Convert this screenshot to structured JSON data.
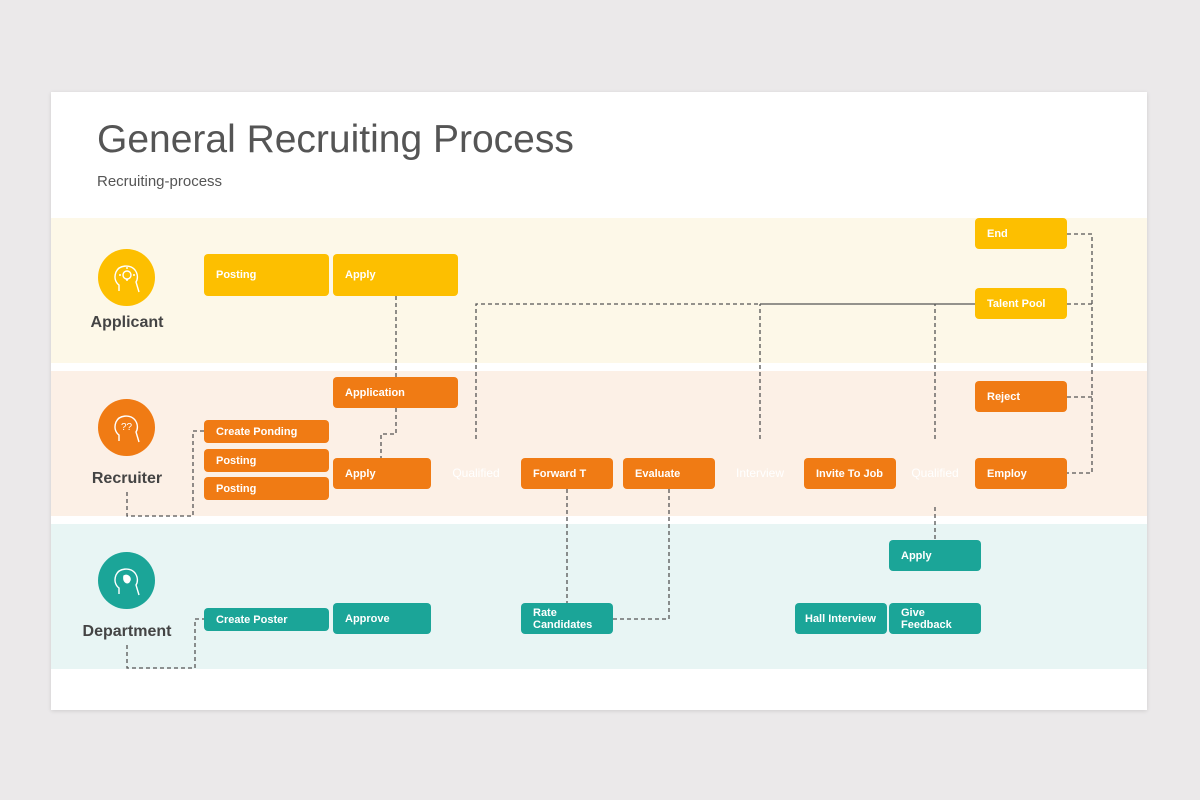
{
  "title": "General Recruiting Process",
  "subtitle": "Recruiting-process",
  "colors": {
    "applicant": "#fdbf00",
    "recruiter": "#f07b14",
    "department": "#1ba598"
  },
  "lanes": [
    {
      "label": "Applicant",
      "icon": "head-lightbulb-icon"
    },
    {
      "label": "Recruiter",
      "icon": "head-question-icon"
    },
    {
      "label": "Department",
      "icon": "head-profile-icon"
    }
  ],
  "nodes": {
    "posting_a": "Posting",
    "apply_a": "Apply",
    "end": "End",
    "talent_pool": "Talent Pool",
    "application": "Application",
    "create_ponding": "Create Ponding",
    "posting_r1": "Posting",
    "posting_r2": "Posting",
    "apply_r": "Apply",
    "qualified_1": "Qualified",
    "forward": "Forward T",
    "evaluate": "Evaluate",
    "interview": "Interview",
    "invite": "Invite To Job",
    "qualified_2": "Qualified",
    "employ": "Employ",
    "reject": "Reject",
    "create_poster": "Create Poster",
    "approve": "Approve",
    "rate": "Rate Candidates",
    "hall_interview": "Hall Interview",
    "give_feedback": "Give Feedback",
    "apply_d": "Apply"
  }
}
